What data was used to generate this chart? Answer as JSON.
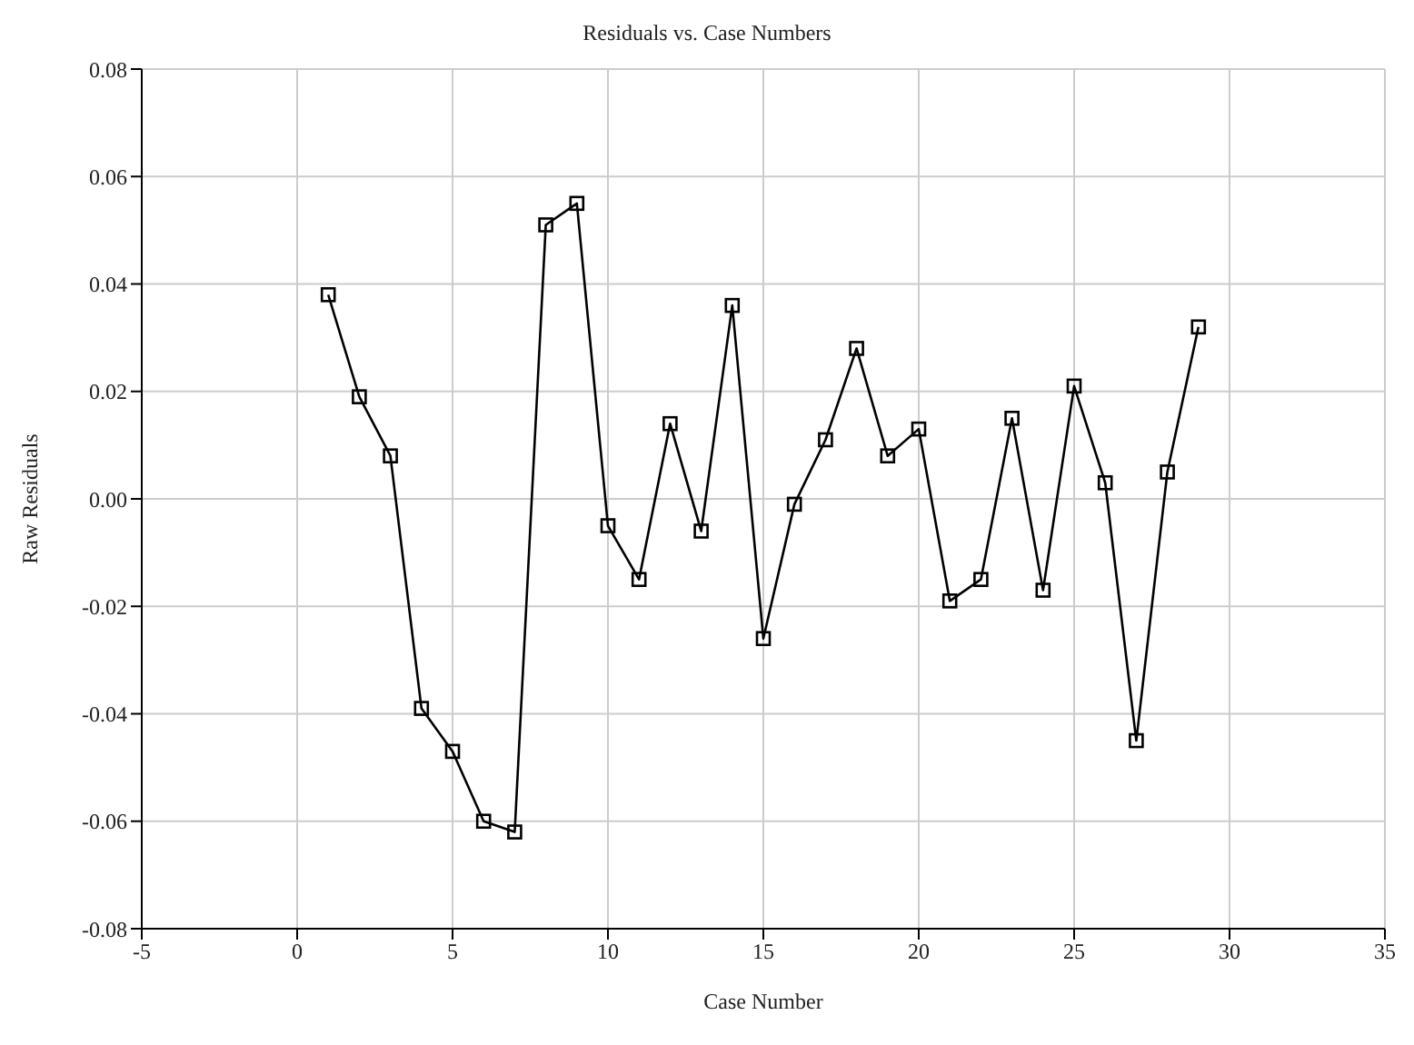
{
  "chart_data": {
    "type": "line",
    "title": "Residuals vs. Case Numbers",
    "xlabel": "Case Number",
    "ylabel": "Raw Residuals",
    "x": [
      1,
      2,
      3,
      4,
      5,
      6,
      7,
      8,
      9,
      10,
      11,
      12,
      13,
      14,
      15,
      16,
      17,
      18,
      19,
      20,
      21,
      22,
      23,
      24,
      25,
      26,
      27,
      28,
      29
    ],
    "series": [
      {
        "color": "#000000",
        "values": [
          0.038,
          0.019,
          0.008,
          -0.039,
          -0.047,
          -0.06,
          -0.062,
          0.051,
          0.055,
          -0.005,
          -0.015,
          0.014,
          -0.006,
          0.036,
          -0.026,
          -0.001,
          0.011,
          0.028,
          0.008,
          0.013,
          -0.019,
          -0.015,
          0.015,
          -0.017,
          0.021,
          0.003,
          -0.045,
          0.005,
          0.032
        ]
      }
    ],
    "xlim": [
      -5,
      35
    ],
    "xticks": [
      -5,
      0,
      5,
      10,
      15,
      20,
      25,
      30,
      35
    ],
    "ylim": [
      -0.08,
      0.08
    ],
    "yticks": [
      -0.08,
      -0.06,
      -0.04,
      -0.02,
      {
        "value": 0,
        "label": "0.00"
      },
      0.02,
      0.04,
      0.06,
      0.08
    ],
    "grid": true,
    "marker": "square",
    "line_style": "solid"
  }
}
